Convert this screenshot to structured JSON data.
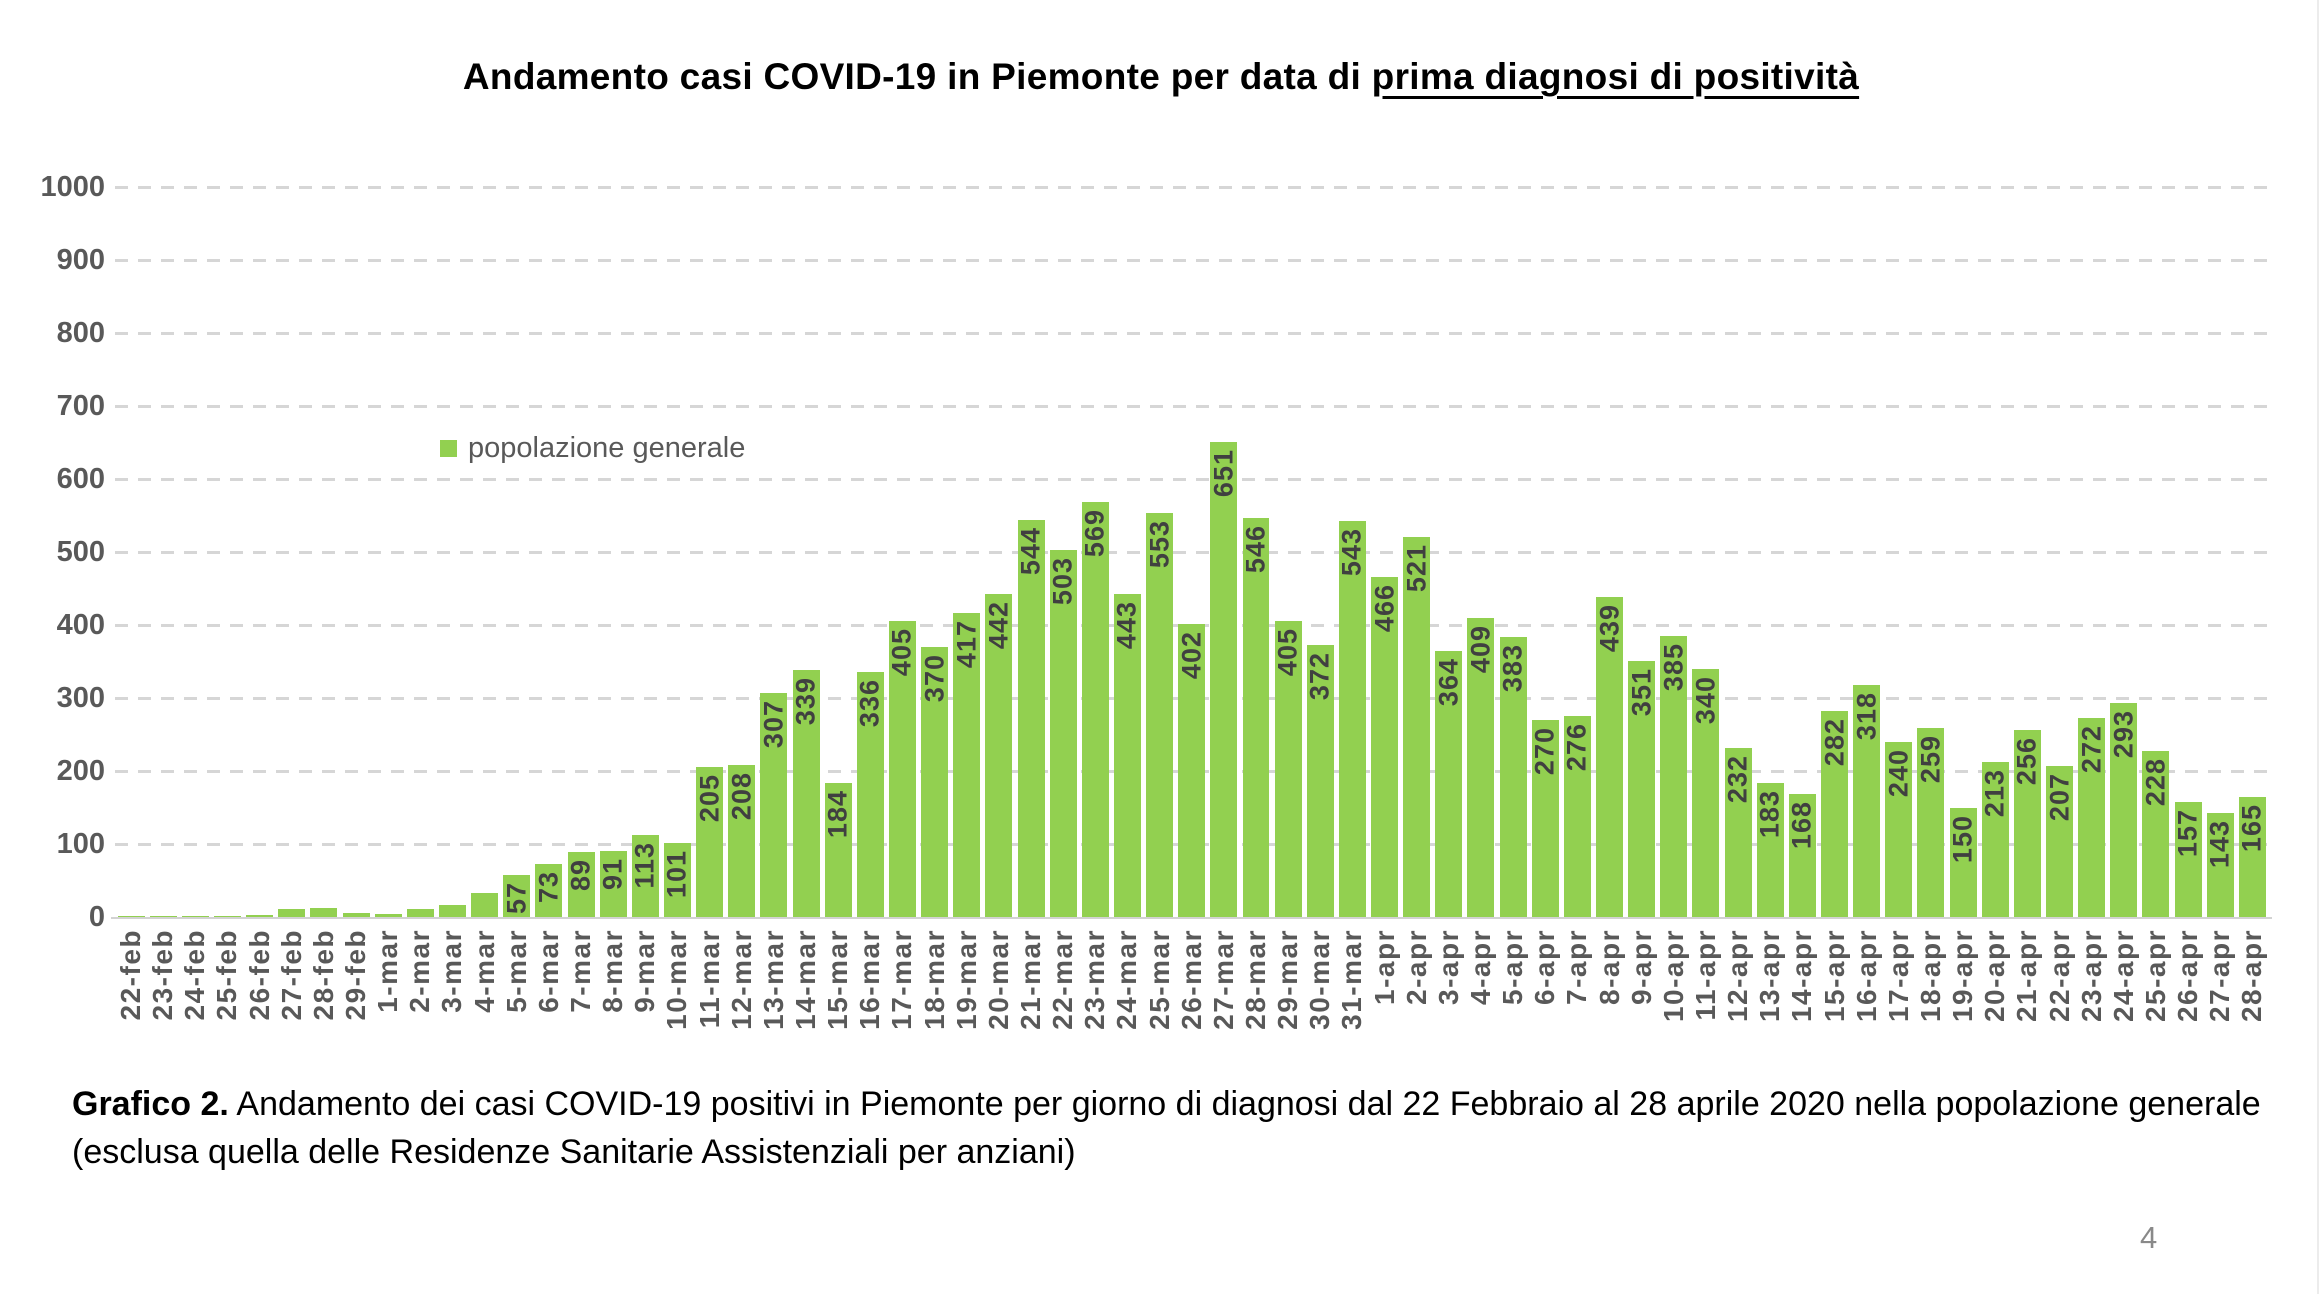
{
  "title": {
    "prefix": "Andamento casi COVID-19 in Piemonte per data di ",
    "underlined": "prima diagnosi di positività"
  },
  "legend": {
    "label": "popolazione generale"
  },
  "caption": {
    "label": "Grafico 2.",
    "text": " Andamento dei casi COVID-19 positivi in Piemonte per giorno di diagnosi dal 22 Febbraio al 28 aprile 2020 nella popolazione generale (esclusa quella delle Residenze Sanitarie Assistenziali per anziani)"
  },
  "page": {
    "number": "4"
  },
  "colors": {
    "bar": "#92d050",
    "bar_label": "#404040",
    "axis_label": "#595959",
    "gridline": "#d6d6d6",
    "title": "#000000",
    "page_number": "#898989"
  },
  "chart_data": {
    "type": "bar",
    "title": "Andamento casi COVID-19 in Piemonte per data di prima diagnosi di positività",
    "xlabel": "",
    "ylabel": "",
    "ylim": [
      0,
      1000
    ],
    "ytick_step": 100,
    "grid": "horizontal-dashed",
    "legend_entries": [
      "popolazione generale"
    ],
    "legend_position": "inside-upper-left",
    "series_name": "popolazione generale",
    "categories": [
      "22-feb",
      "23-feb",
      "24-feb",
      "25-feb",
      "26-feb",
      "27-feb",
      "28-feb",
      "29-feb",
      "1-mar",
      "2-mar",
      "3-mar",
      "4-mar",
      "5-mar",
      "6-mar",
      "7-mar",
      "8-mar",
      "9-mar",
      "10-mar",
      "11-mar",
      "12-mar",
      "13-mar",
      "14-mar",
      "15-mar",
      "16-mar",
      "17-mar",
      "18-mar",
      "19-mar",
      "20-mar",
      "21-mar",
      "22-mar",
      "23-mar",
      "24-mar",
      "25-mar",
      "26-mar",
      "27-mar",
      "28-mar",
      "29-mar",
      "30-mar",
      "31-mar",
      "1-apr",
      "2-apr",
      "3-apr",
      "4-apr",
      "5-apr",
      "6-apr",
      "7-apr",
      "8-apr",
      "9-apr",
      "10-apr",
      "11-apr",
      "12-apr",
      "13-apr",
      "14-apr",
      "15-apr",
      "16-apr",
      "17-apr",
      "18-apr",
      "19-apr",
      "20-apr",
      "21-apr",
      "22-apr",
      "23-apr",
      "24-apr",
      "25-apr",
      "26-apr",
      "27-apr",
      "28-apr"
    ],
    "values": [
      1,
      2,
      2,
      1,
      3,
      11,
      13,
      5,
      4,
      11,
      17,
      33,
      57,
      73,
      89,
      91,
      113,
      101,
      205,
      208,
      307,
      339,
      184,
      336,
      405,
      370,
      417,
      442,
      544,
      503,
      569,
      443,
      553,
      402,
      651,
      546,
      405,
      372,
      543,
      466,
      521,
      364,
      409,
      383,
      270,
      276,
      439,
      351,
      385,
      340,
      232,
      183,
      168,
      282,
      318,
      240,
      259,
      150,
      213,
      256,
      207,
      272,
      293,
      228,
      157,
      143,
      165
    ],
    "data_labels": [
      "",
      "",
      "",
      "",
      "",
      "",
      "",
      "",
      "",
      "",
      "",
      "",
      "57",
      "73",
      "89",
      "91",
      "113",
      "101",
      "205",
      "208",
      "307",
      "339",
      "184",
      "336",
      "405",
      "370",
      "417",
      "442",
      "544",
      "503",
      "569",
      "443",
      "553",
      "402",
      "651",
      "546",
      "405",
      "372",
      "543",
      "466",
      "521",
      "364",
      "409",
      "383",
      "270",
      "276",
      "439",
      "351",
      "385",
      "340",
      "232",
      "183",
      "168",
      "282",
      "318",
      "240",
      "259",
      "150",
      "213",
      "256",
      "207",
      "272",
      "293",
      "228",
      "157",
      "143",
      "165"
    ]
  }
}
